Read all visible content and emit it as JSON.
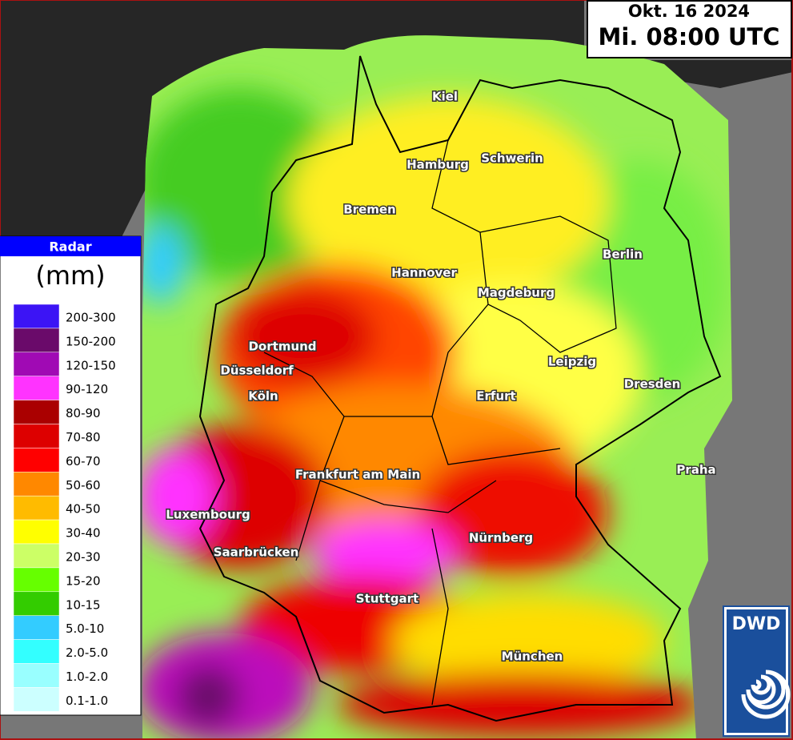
{
  "timestamp": {
    "date": "Okt. 16 2024",
    "time": "Mi. 08:00 UTC"
  },
  "legend": {
    "title": "Radar",
    "unit": "(mm)",
    "items": [
      {
        "label": "200-300",
        "color": "#3c14f5"
      },
      {
        "label": "150-200",
        "color": "#6a0a6a"
      },
      {
        "label": "120-150",
        "color": "#a00ab4"
      },
      {
        "label": "90-120",
        "color": "#ff33ff"
      },
      {
        "label": "80-90",
        "color": "#aa0000"
      },
      {
        "label": "70-80",
        "color": "#dd0000"
      },
      {
        "label": "60-70",
        "color": "#ff0000"
      },
      {
        "label": "50-60",
        "color": "#ff8800"
      },
      {
        "label": "40-50",
        "color": "#ffbb00"
      },
      {
        "label": "30-40",
        "color": "#ffff00"
      },
      {
        "label": "20-30",
        "color": "#ccff66"
      },
      {
        "label": "15-20",
        "color": "#66ff00"
      },
      {
        "label": "10-15",
        "color": "#33cc00"
      },
      {
        "label": "5.0-10",
        "color": "#33ccff"
      },
      {
        "label": "2.0-5.0",
        "color": "#33ffff"
      },
      {
        "label": "1.0-2.0",
        "color": "#99ffff"
      },
      {
        "label": "0.1-1.0",
        "color": "#ccffff"
      }
    ]
  },
  "cities": [
    "Kiel",
    "Hamburg",
    "Schwerin",
    "Bremen",
    "Hannover",
    "Berlin",
    "Magdeburg",
    "Dortmund",
    "Düsseldorf",
    "Köln",
    "Leipzig",
    "Dresden",
    "Erfurt",
    "Frankfurt am Main",
    "Praha",
    "Luxembourg",
    "Nürnberg",
    "Saarbrücken",
    "Stuttgart",
    "München"
  ],
  "logo": "DWD"
}
